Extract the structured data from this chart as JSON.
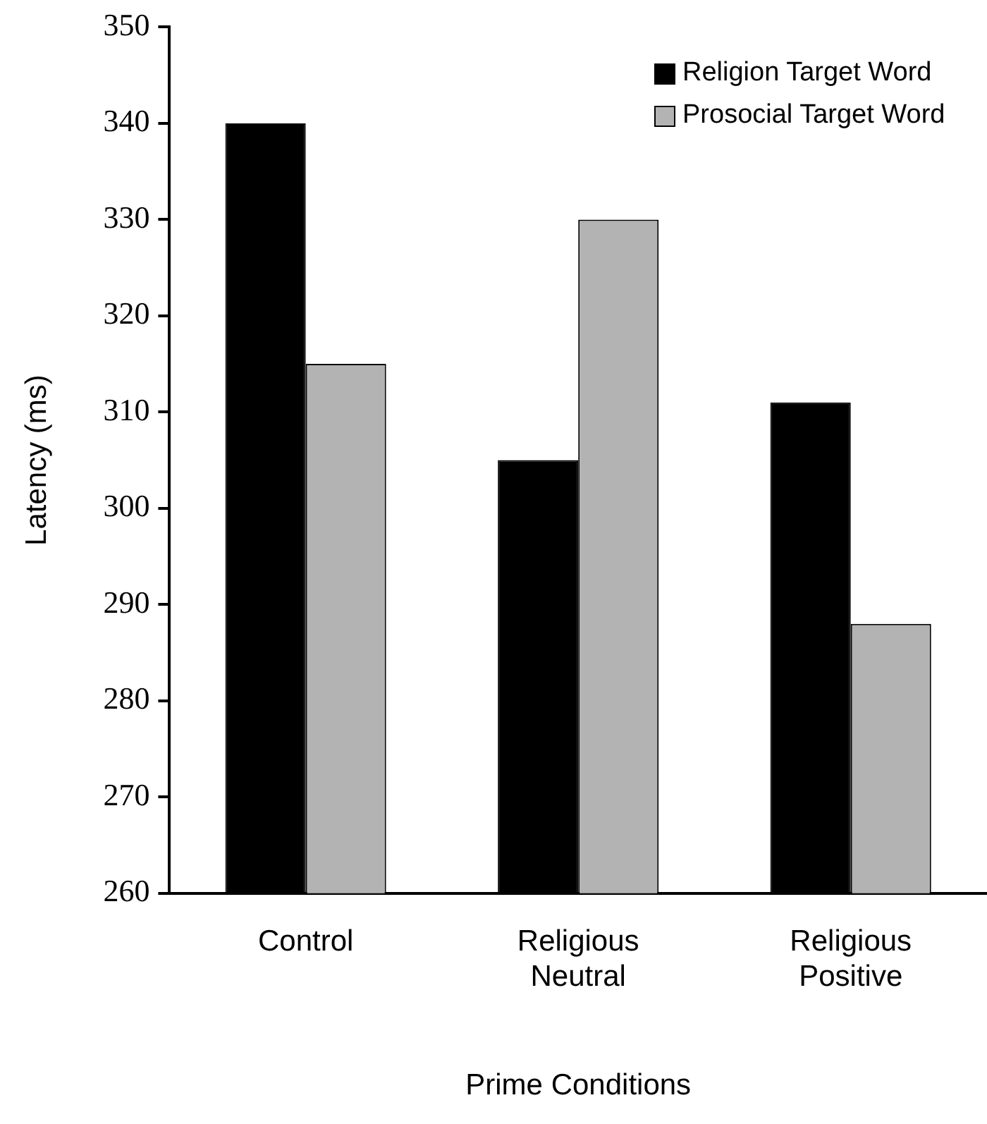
{
  "chart_data": {
    "type": "bar",
    "xlabel": "Prime Conditions",
    "ylabel": "Latency (ms)",
    "categories": [
      "Control",
      "Religious\nNeutral",
      "Religious\nPositive"
    ],
    "series": [
      {
        "name": "Religion Target Word",
        "color": "#000000",
        "values": [
          340,
          305,
          311
        ]
      },
      {
        "name": "Prosocial Target Word",
        "color": "#b3b3b3",
        "values": [
          315,
          330,
          288
        ]
      }
    ],
    "ylim": [
      260,
      350
    ],
    "yticks": [
      260,
      270,
      280,
      290,
      300,
      310,
      320,
      330,
      340,
      350
    ],
    "grid": false,
    "legend": "top right"
  }
}
